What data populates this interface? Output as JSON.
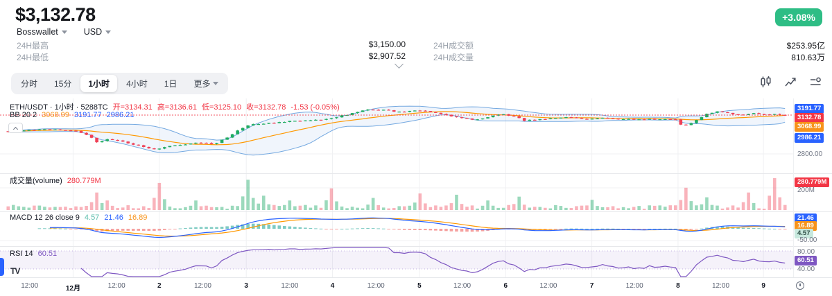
{
  "header": {
    "price": "$3,132.78",
    "change_badge": "+3.08%",
    "source": "Bosswallet",
    "currency": "USD",
    "stats": {
      "high_label": "24H最高",
      "high_value": "$3,150.00",
      "low_label": "24H最低",
      "low_value": "$2,907.52",
      "turnover_label": "24H成交额",
      "turnover_value": "$253.95亿",
      "volume_label": "24H成交量",
      "volume_value": "810.63万"
    }
  },
  "toolbar": {
    "intervals": [
      "分时",
      "15分",
      "1小时",
      "4小时",
      "1日"
    ],
    "selected": "1小时",
    "more": "更多"
  },
  "chart_data": [
    {
      "type": "candlestick",
      "title": "ETH/USDT · 1小时 · 5288TC",
      "legend": {
        "open": "开=3134.31",
        "high": "高=3136.61",
        "low": "低=3125.10",
        "close": "收=3132.78",
        "change": "-1.53 (-0.05%)"
      },
      "bb": {
        "label": "BB 20 2",
        "period": 20,
        "stdev": 2,
        "middle": 3068.99,
        "upper": 3191.77,
        "lower": 2986.21
      },
      "last_candle": {
        "open": 3134.31,
        "high": 3136.61,
        "low": 3125.1,
        "close": 3132.78
      },
      "current_price": 3132.78,
      "gridline_price": 2800,
      "y_axis": {
        "upper_band": "3191.77",
        "last": "3132.78",
        "middle_band": "3068.99",
        "lower_band": "2986.21",
        "gridline": "2800.00"
      },
      "n_candles": 150,
      "price_anchors": [
        [
          0.0,
          2992
        ],
        [
          0.03,
          3002
        ],
        [
          0.06,
          3012
        ],
        [
          0.09,
          2995
        ],
        [
          0.105,
          2950
        ],
        [
          0.115,
          2895
        ],
        [
          0.13,
          2930
        ],
        [
          0.15,
          2900
        ],
        [
          0.17,
          2868
        ],
        [
          0.19,
          2838
        ],
        [
          0.205,
          2862
        ],
        [
          0.225,
          2882
        ],
        [
          0.245,
          2902
        ],
        [
          0.265,
          2882
        ],
        [
          0.285,
          2952
        ],
        [
          0.3,
          3022
        ],
        [
          0.315,
          3052
        ],
        [
          0.335,
          3062
        ],
        [
          0.36,
          3078
        ],
        [
          0.385,
          3088
        ],
        [
          0.41,
          3098
        ],
        [
          0.435,
          3135
        ],
        [
          0.455,
          3168
        ],
        [
          0.47,
          3182
        ],
        [
          0.49,
          3172
        ],
        [
          0.505,
          3158
        ],
        [
          0.525,
          3172
        ],
        [
          0.545,
          3158
        ],
        [
          0.565,
          3128
        ],
        [
          0.585,
          3108
        ],
        [
          0.6,
          3092
        ],
        [
          0.615,
          3112
        ],
        [
          0.635,
          3142
        ],
        [
          0.65,
          3122
        ],
        [
          0.665,
          3085
        ],
        [
          0.685,
          3098
        ],
        [
          0.705,
          3108
        ],
        [
          0.725,
          3112
        ],
        [
          0.745,
          3100
        ],
        [
          0.765,
          3108
        ],
        [
          0.785,
          3098
        ],
        [
          0.805,
          3094
        ],
        [
          0.825,
          3100
        ],
        [
          0.845,
          3096
        ],
        [
          0.86,
          3098
        ],
        [
          0.868,
          3032
        ],
        [
          0.878,
          3055
        ],
        [
          0.89,
          3105
        ],
        [
          0.9,
          3148
        ],
        [
          0.915,
          3162
        ],
        [
          0.93,
          3142
        ],
        [
          0.945,
          3128
        ],
        [
          0.96,
          3148
        ],
        [
          0.975,
          3138
        ],
        [
          0.99,
          3142
        ],
        [
          1.0,
          3132.78
        ]
      ]
    },
    {
      "type": "bar",
      "name": "volume",
      "legend": {
        "label": "成交量(volume)",
        "value": "280.779M"
      },
      "y_axis": {
        "current": "280.779M",
        "gridline": "200M"
      },
      "spikes": [
        [
          0.114,
          0.55,
          "d"
        ],
        [
          0.13,
          0.3,
          "d"
        ],
        [
          0.196,
          0.85,
          "d"
        ],
        [
          0.24,
          0.3,
          "u"
        ],
        [
          0.306,
          0.95,
          "u"
        ],
        [
          0.33,
          0.45,
          "u"
        ],
        [
          0.36,
          0.3,
          "u"
        ],
        [
          0.419,
          0.68,
          "d"
        ],
        [
          0.47,
          0.38,
          "u"
        ],
        [
          0.533,
          0.52,
          "d"
        ],
        [
          0.576,
          0.48,
          "u"
        ],
        [
          0.62,
          0.3,
          "u"
        ],
        [
          0.655,
          0.42,
          "u"
        ],
        [
          0.755,
          0.32,
          "u"
        ],
        [
          0.873,
          0.7,
          "d"
        ],
        [
          0.9,
          0.4,
          "u"
        ],
        [
          0.956,
          0.55,
          "d"
        ],
        [
          0.985,
          1.0,
          "d"
        ]
      ]
    },
    {
      "type": "line",
      "name": "MACD",
      "legend": {
        "label": "MACD 12 26 close 9",
        "hist": "4.57",
        "macd": "21.46",
        "signal": "16.89"
      },
      "params": {
        "fast": 12,
        "slow": 26,
        "source": "close",
        "signal": 9
      },
      "y_axis": {
        "macd": "21.46",
        "signal": "16.89",
        "hist": "4.57",
        "gridline": "-50.00"
      }
    },
    {
      "type": "line",
      "name": "RSI",
      "legend": {
        "label": "RSI 14",
        "value": "60.51"
      },
      "period": 14,
      "levels": [
        80,
        40
      ],
      "y_axis": {
        "upper": "80.00",
        "current": "60.51",
        "lower": "40.00"
      }
    }
  ],
  "x_axis": {
    "labels": [
      {
        "t": 0.031,
        "text": "12:00"
      },
      {
        "t": 0.087,
        "text": "12月",
        "major": true
      },
      {
        "t": 0.143,
        "text": "12:00"
      },
      {
        "t": 0.198,
        "text": "2",
        "major": true
      },
      {
        "t": 0.254,
        "text": "12:00"
      },
      {
        "t": 0.31,
        "text": "3",
        "major": true
      },
      {
        "t": 0.366,
        "text": "12:00"
      },
      {
        "t": 0.421,
        "text": "4",
        "major": true
      },
      {
        "t": 0.477,
        "text": "12:00"
      },
      {
        "t": 0.533,
        "text": "5",
        "major": true
      },
      {
        "t": 0.588,
        "text": "12:00"
      },
      {
        "t": 0.644,
        "text": "6",
        "major": true
      },
      {
        "t": 0.699,
        "text": "12:00"
      },
      {
        "t": 0.755,
        "text": "7",
        "major": true
      },
      {
        "t": 0.81,
        "text": "12:00"
      },
      {
        "t": 0.866,
        "text": "8",
        "major": true
      },
      {
        "t": 0.921,
        "text": "12:00"
      },
      {
        "t": 0.976,
        "text": "9",
        "major": true
      }
    ]
  },
  "colors": {
    "up": "#1fab61",
    "down": "#ef4056",
    "up_fill": "rgba(34,171,107,0.45)",
    "down_fill": "rgba(239,64,86,0.40)",
    "badge_green": "#2ebd85",
    "red": "#f23645",
    "blue": "#2962ff",
    "orange": "#f7931a",
    "purple": "#7e57c2",
    "bb_line": "#73a8e0",
    "bb_fill": "rgba(110,160,230,0.10)",
    "bb_mid": "#ff9800",
    "macd": "#2962ff",
    "signal": "#ff9800",
    "hist_up": "rgba(38,166,154,0.60)",
    "hist_down": "rgba(239,83,80,0.55)",
    "rsi_band": "rgba(126,87,194,0.08)",
    "rsi_level": "rgba(126,87,194,0.45)",
    "grid": "#f0f1f3",
    "separator": "#e6e8eb"
  }
}
